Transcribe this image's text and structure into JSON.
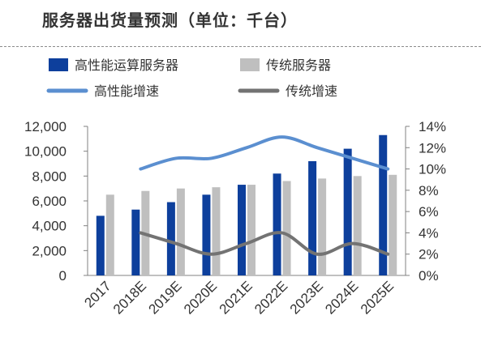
{
  "title": "服务器出货量预测（单位：千台）",
  "chart_data": {
    "type": "bar",
    "categories": [
      "2017",
      "2018E",
      "2019E",
      "2020E",
      "2021E",
      "2022E",
      "2023E",
      "2024E",
      "2025E"
    ],
    "series": [
      {
        "name": "高性能运算服务器",
        "type": "bar",
        "axis": "left",
        "color": "#0d3f9c",
        "values": [
          4800,
          5300,
          5900,
          6500,
          7300,
          8200,
          9200,
          10200,
          11300
        ]
      },
      {
        "name": "传统服务器",
        "type": "bar",
        "axis": "left",
        "color": "#bfbfbf",
        "values": [
          6500,
          6800,
          7000,
          7100,
          7300,
          7600,
          7800,
          8000,
          8100
        ]
      },
      {
        "name": "高性能增速",
        "type": "line",
        "axis": "right",
        "color": "#5b8fd0",
        "values": [
          null,
          10,
          11,
          11,
          12,
          13,
          12,
          11,
          10
        ]
      },
      {
        "name": "传统增速",
        "type": "line",
        "axis": "right",
        "color": "#737373",
        "values": [
          null,
          4,
          3,
          2,
          3,
          4,
          2,
          3,
          2
        ]
      }
    ],
    "y_left": {
      "min": 0,
      "max": 12000,
      "step": 2000,
      "tick_labels": [
        "0",
        "2,000",
        "4,000",
        "6,000",
        "8,000",
        "10,000",
        "12,000"
      ]
    },
    "y_right": {
      "min": 0,
      "max": 14,
      "step": 2,
      "tick_labels": [
        "0%",
        "2%",
        "4%",
        "6%",
        "8%",
        "10%",
        "12%",
        "14%"
      ]
    },
    "grid": false,
    "legend_position": "top"
  }
}
